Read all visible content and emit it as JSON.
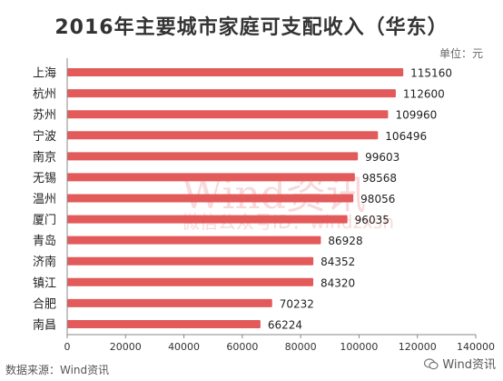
{
  "title": "2016年主要城市家庭可支配收入（华东）",
  "unit": "单位：元",
  "source": "数据来源：Wind资讯",
  "logo_text": "Wind资讯",
  "watermark": {
    "main": "Wind资讯",
    "sub": "微信公众号ID：windzxsh"
  },
  "colors": {
    "bar": "#e25a59",
    "axis": "#888888",
    "text": "#222222"
  },
  "chart_data": {
    "type": "bar",
    "orientation": "horizontal",
    "categories": [
      "上海",
      "杭州",
      "苏州",
      "宁波",
      "南京",
      "无锡",
      "温州",
      "厦门",
      "青岛",
      "济南",
      "镇江",
      "合肥",
      "南昌"
    ],
    "values": [
      115160,
      112600,
      109960,
      106496,
      99603,
      98568,
      98056,
      96035,
      86928,
      84352,
      84320,
      70232,
      66224
    ],
    "xlim": [
      0,
      140000
    ],
    "xticks": [
      0,
      20000,
      40000,
      60000,
      80000,
      100000,
      120000,
      140000
    ],
    "grid": false,
    "legend": "none"
  }
}
